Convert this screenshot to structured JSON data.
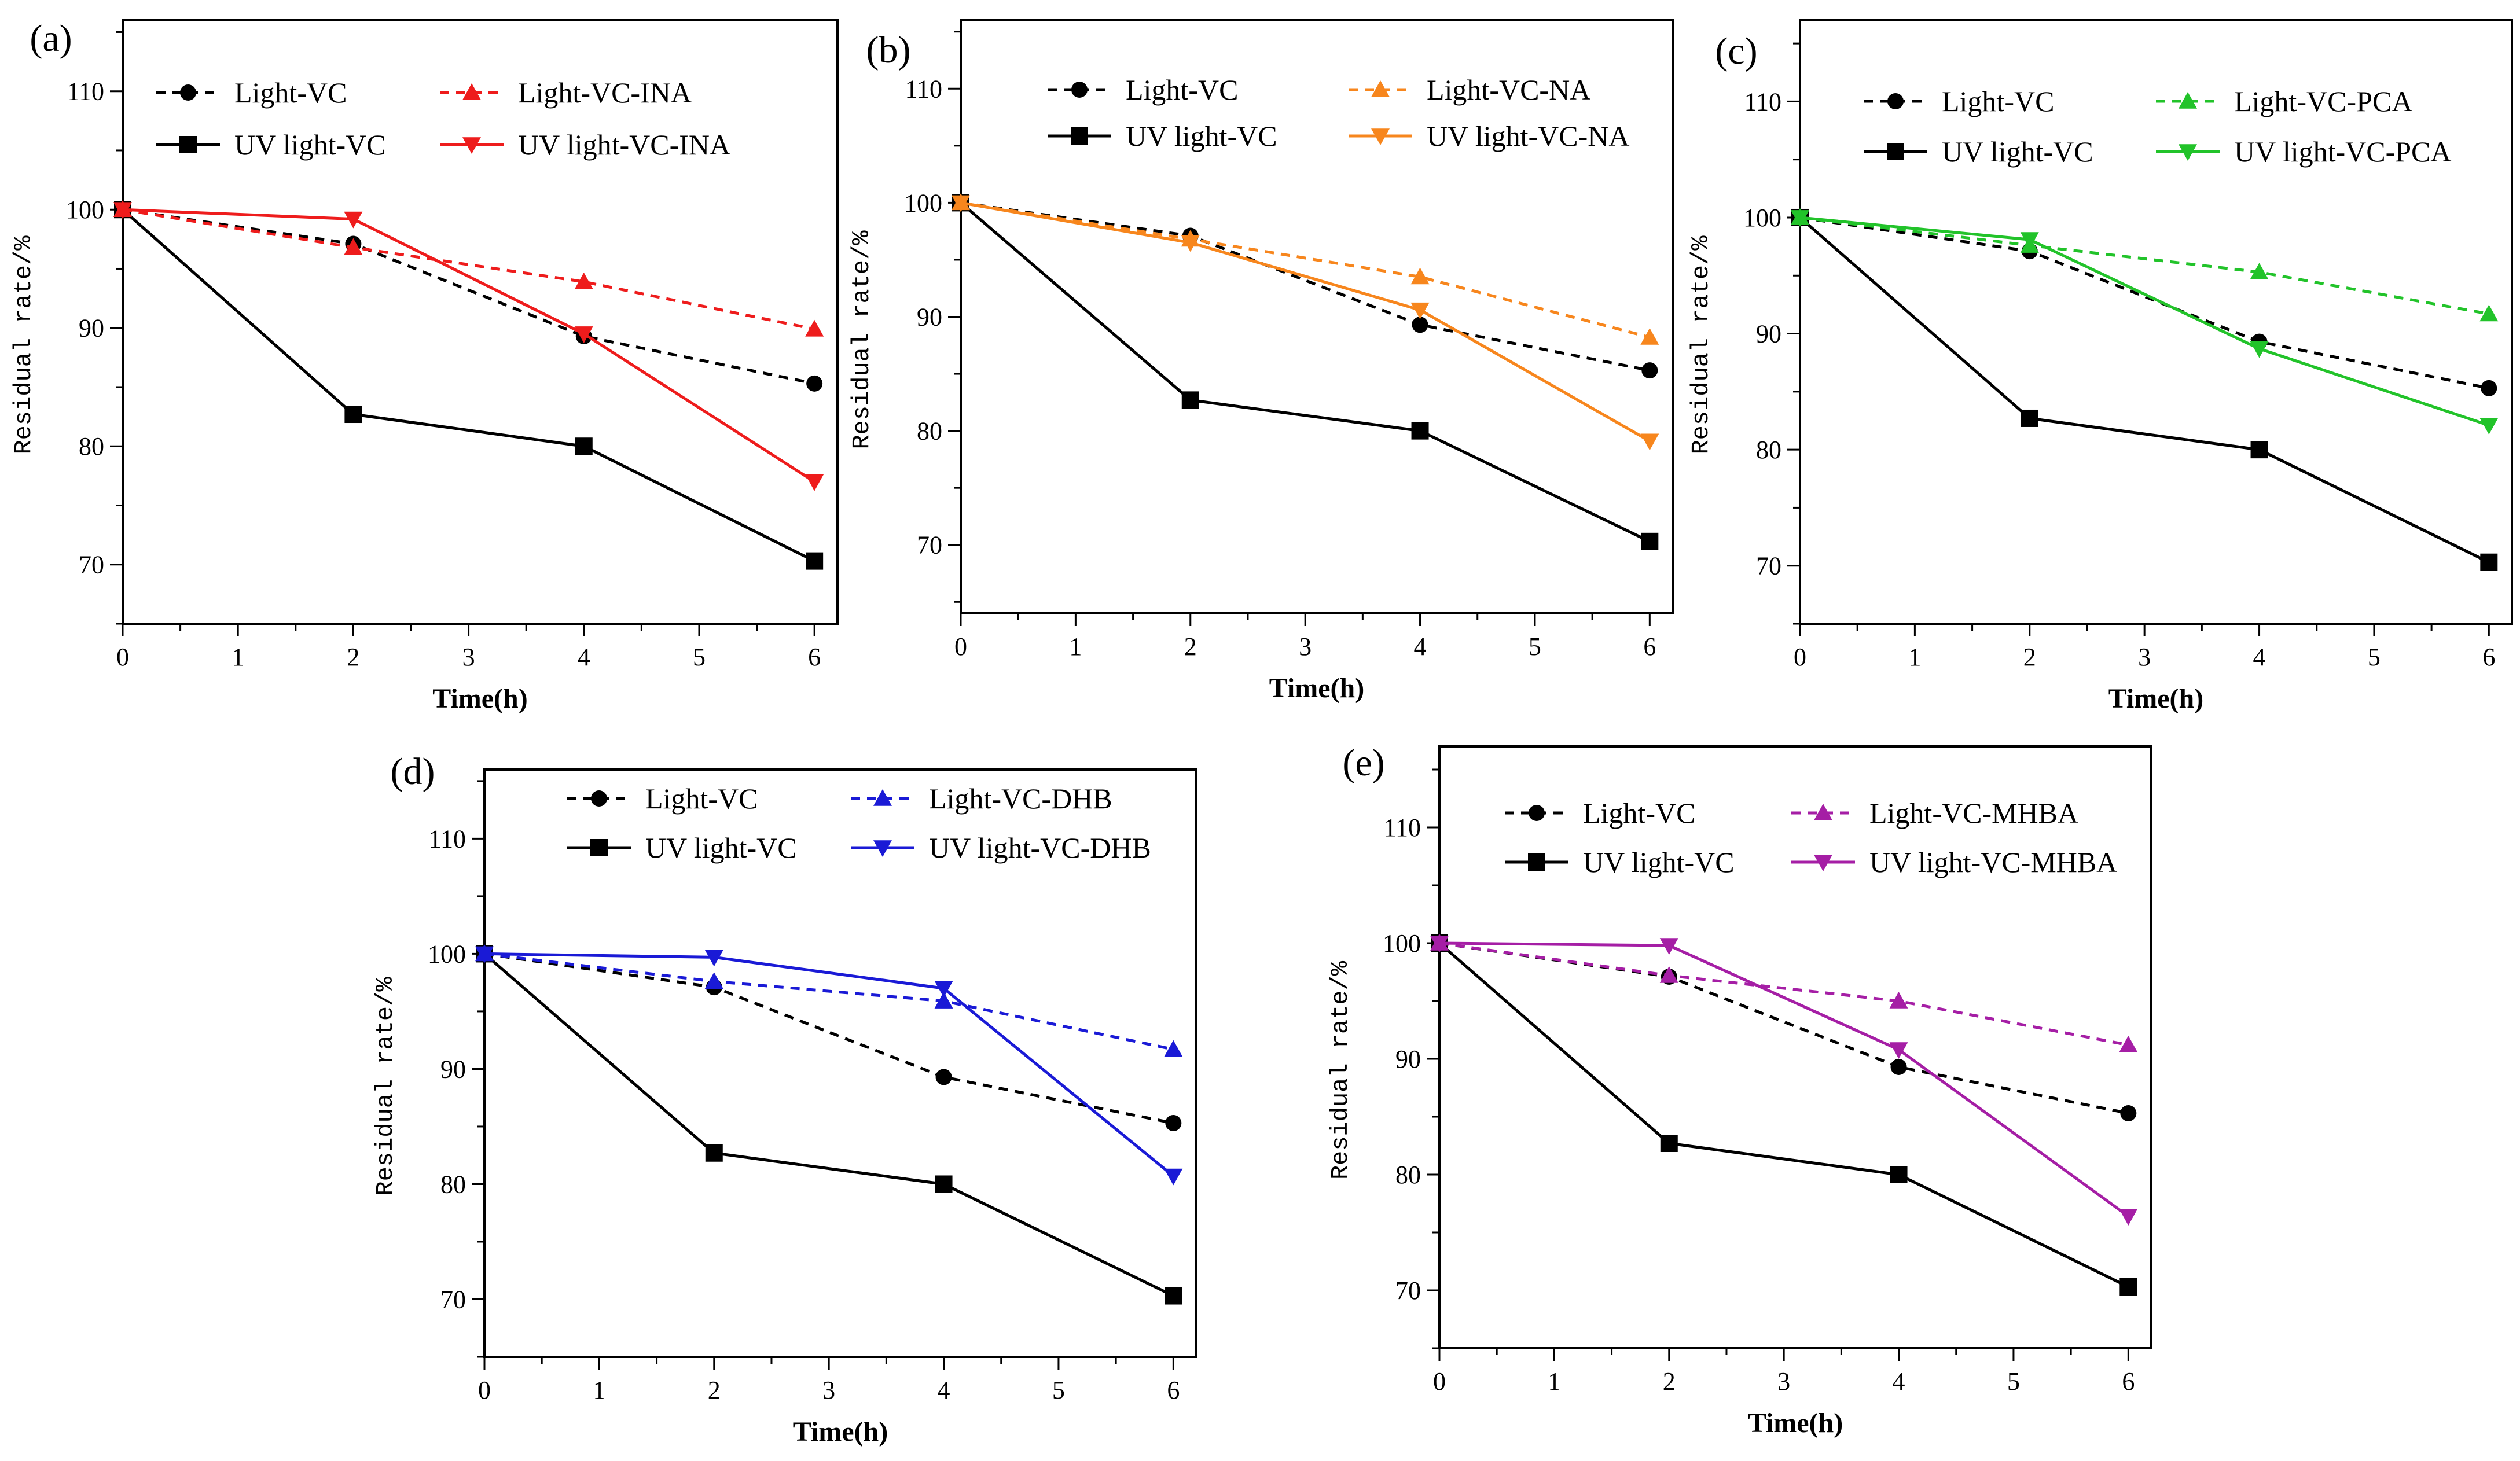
{
  "chart_data": [
    {
      "panel": "(a)",
      "type": "line",
      "xlabel": "Time(h)",
      "ylabel": "Residual rate/%",
      "xlim": [
        0,
        6.2
      ],
      "ylim": [
        65,
        116
      ],
      "xticks": [
        "0",
        "1",
        "2",
        "3",
        "4",
        "5",
        "6"
      ],
      "yticks": [
        "70",
        "80",
        "90",
        "100",
        "110"
      ],
      "series": [
        {
          "name": "Light-VC",
          "color": "#000000",
          "dash": true,
          "marker": "circle",
          "x": [
            0,
            2,
            4,
            6
          ],
          "values": [
            100,
            97.1,
            89.3,
            85.3
          ]
        },
        {
          "name": "UV light-VC",
          "color": "#000000",
          "dash": false,
          "marker": "square",
          "x": [
            0,
            2,
            4,
            6
          ],
          "values": [
            100,
            82.7,
            80.0,
            70.3
          ]
        },
        {
          "name": "Light-VC-INA",
          "color": "#ee1c1c",
          "dash": true,
          "marker": "triangle-up",
          "x": [
            0,
            2,
            4,
            6
          ],
          "values": [
            100,
            96.8,
            93.9,
            89.9
          ]
        },
        {
          "name": "UV light-VC-INA",
          "color": "#ee1c1c",
          "dash": false,
          "marker": "triangle-down",
          "x": [
            0,
            2,
            4,
            6
          ],
          "values": [
            100,
            99.2,
            89.5,
            77.0
          ]
        }
      ]
    },
    {
      "panel": "(b)",
      "type": "line",
      "xlabel": "Time(h)",
      "ylabel": "Residual rate/%",
      "xlim": [
        0,
        6.2
      ],
      "ylim": [
        64,
        116
      ],
      "xticks": [
        "0",
        "1",
        "2",
        "3",
        "4",
        "5",
        "6"
      ],
      "yticks": [
        "70",
        "80",
        "90",
        "100",
        "110"
      ],
      "series": [
        {
          "name": "Light-VC",
          "color": "#000000",
          "dash": true,
          "marker": "circle",
          "x": [
            0,
            2,
            4,
            6
          ],
          "values": [
            100,
            97.1,
            89.3,
            85.3
          ]
        },
        {
          "name": "UV light-VC",
          "color": "#000000",
          "dash": false,
          "marker": "square",
          "x": [
            0,
            2,
            4,
            6
          ],
          "values": [
            100,
            82.7,
            80.0,
            70.3
          ]
        },
        {
          "name": "Light-VC-NA",
          "color": "#f7861d",
          "dash": true,
          "marker": "triangle-up",
          "x": [
            0,
            2,
            4,
            6
          ],
          "values": [
            100,
            96.8,
            93.5,
            88.2
          ]
        },
        {
          "name": "UV light-VC-NA",
          "color": "#f7861d",
          "dash": false,
          "marker": "triangle-down",
          "x": [
            0,
            2,
            4,
            6
          ],
          "values": [
            100,
            96.5,
            90.6,
            79.1
          ]
        }
      ]
    },
    {
      "panel": "(c)",
      "type": "line",
      "xlabel": "Time(h)",
      "ylabel": "Residual rate/%",
      "xlim": [
        0,
        6.2
      ],
      "ylim": [
        65,
        117
      ],
      "xticks": [
        "0",
        "1",
        "2",
        "3",
        "4",
        "5",
        "6"
      ],
      "yticks": [
        "70",
        "80",
        "90",
        "100",
        "110"
      ],
      "series": [
        {
          "name": "Light-VC",
          "color": "#000000",
          "dash": true,
          "marker": "circle",
          "x": [
            0,
            2,
            4,
            6
          ],
          "values": [
            100,
            97.1,
            89.3,
            85.3
          ]
        },
        {
          "name": "UV light-VC",
          "color": "#000000",
          "dash": false,
          "marker": "square",
          "x": [
            0,
            2,
            4,
            6
          ],
          "values": [
            100,
            82.7,
            80.0,
            70.3
          ]
        },
        {
          "name": "Light-VC-PCA",
          "color": "#22c32a",
          "dash": true,
          "marker": "triangle-up",
          "x": [
            0,
            2,
            4,
            6
          ],
          "values": [
            100,
            97.6,
            95.3,
            91.7
          ]
        },
        {
          "name": "UV light-VC-PCA",
          "color": "#22c32a",
          "dash": false,
          "marker": "triangle-down",
          "x": [
            0,
            2,
            4,
            6
          ],
          "values": [
            100,
            98.1,
            88.7,
            82.1
          ]
        }
      ]
    },
    {
      "panel": "(d)",
      "type": "line",
      "xlabel": "Time(h)",
      "ylabel": "Residual rate/%",
      "xlim": [
        0,
        6.2
      ],
      "ylim": [
        65,
        116
      ],
      "xticks": [
        "0",
        "1",
        "2",
        "3",
        "4",
        "5",
        "6"
      ],
      "yticks": [
        "70",
        "80",
        "90",
        "100",
        "110"
      ],
      "series": [
        {
          "name": "Light-VC",
          "color": "#000000",
          "dash": true,
          "marker": "circle",
          "x": [
            0,
            2,
            4,
            6
          ],
          "values": [
            100,
            97.1,
            89.3,
            85.3
          ]
        },
        {
          "name": "UV light-VC",
          "color": "#000000",
          "dash": false,
          "marker": "square",
          "x": [
            0,
            2,
            4,
            6
          ],
          "values": [
            100,
            82.7,
            80.0,
            70.3
          ]
        },
        {
          "name": "Light-VC-DHB",
          "color": "#1a1ad6",
          "dash": true,
          "marker": "triangle-up",
          "x": [
            0,
            2,
            4,
            6
          ],
          "values": [
            100,
            97.6,
            95.9,
            91.7
          ]
        },
        {
          "name": "UV light-VC-DHB",
          "color": "#1a1ad6",
          "dash": false,
          "marker": "triangle-down",
          "x": [
            0,
            2,
            4,
            6
          ],
          "values": [
            100,
            99.7,
            97.0,
            80.7
          ]
        }
      ]
    },
    {
      "panel": "(e)",
      "type": "line",
      "xlabel": "Time(h)",
      "ylabel": "Residual rate/%",
      "xlim": [
        0,
        6.2
      ],
      "ylim": [
        65,
        117
      ],
      "xticks": [
        "0",
        "1",
        "2",
        "3",
        "4",
        "5",
        "6"
      ],
      "yticks": [
        "70",
        "80",
        "90",
        "100",
        "110"
      ],
      "series": [
        {
          "name": "Light-VC",
          "color": "#000000",
          "dash": true,
          "marker": "circle",
          "x": [
            0,
            2,
            4,
            6
          ],
          "values": [
            100,
            97.1,
            89.3,
            85.3
          ]
        },
        {
          "name": "UV light-VC",
          "color": "#000000",
          "dash": false,
          "marker": "square",
          "x": [
            0,
            2,
            4,
            6
          ],
          "values": [
            100,
            82.7,
            80.0,
            70.3
          ]
        },
        {
          "name": "Light-VC-MHBA",
          "color": "#a51ea5",
          "dash": true,
          "marker": "triangle-up",
          "x": [
            0,
            2,
            4,
            6
          ],
          "values": [
            100,
            97.2,
            95.0,
            91.2
          ]
        },
        {
          "name": "UV light-VC-MHBA",
          "color": "#a51ea5",
          "dash": false,
          "marker": "triangle-down",
          "x": [
            0,
            2,
            4,
            6
          ],
          "values": [
            100,
            99.8,
            90.8,
            76.4
          ]
        }
      ]
    }
  ]
}
